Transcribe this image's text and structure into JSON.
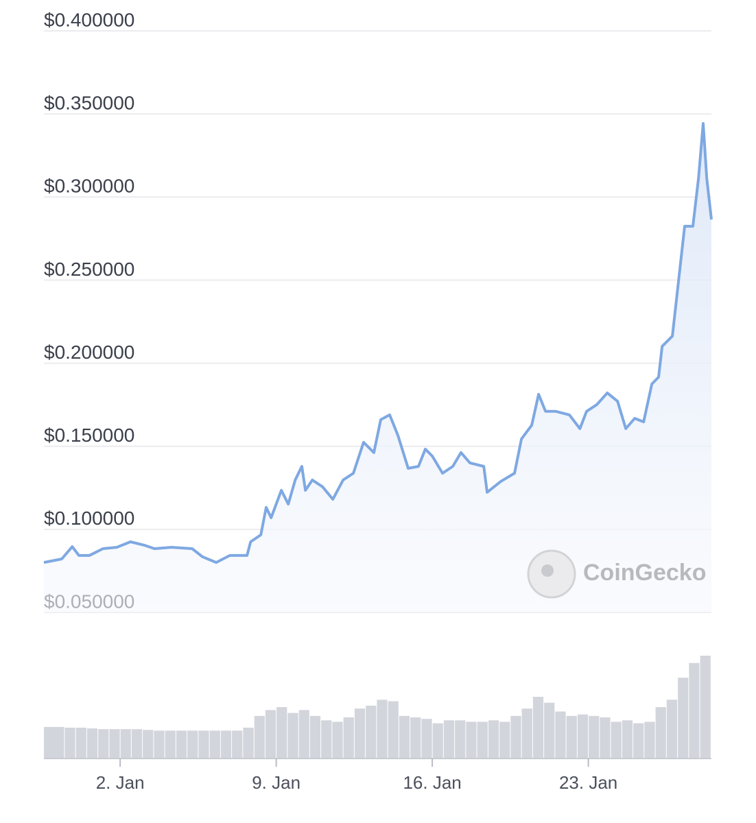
{
  "chart_data": {
    "type": "line",
    "x": [
      -1.42,
      -0.62,
      -0.15,
      0.15,
      0.62,
      1.23,
      1.85,
      2.46,
      3.08,
      3.54,
      4.31,
      5.23,
      5.69,
      6.31,
      6.92,
      7.69,
      7.85,
      8.31,
      8.55,
      8.77,
      9.23,
      9.54,
      9.85,
      10.15,
      10.31,
      10.62,
      11.08,
      11.54,
      12.0,
      12.46,
      12.92,
      13.38,
      13.69,
      14.09,
      14.46,
      14.92,
      15.38,
      15.69,
      16.0,
      16.46,
      16.92,
      17.29,
      17.69,
      18.31,
      18.46,
      19.08,
      19.69,
      20.0,
      20.46,
      20.77,
      21.08,
      21.54,
      22.15,
      22.62,
      22.92,
      23.38,
      23.85,
      24.31,
      24.68,
      25.08,
      25.48,
      25.85,
      26.15,
      26.31,
      26.77,
      27.08,
      27.32,
      27.69,
      27.94,
      28.15,
      28.31,
      28.52
    ],
    "values": [
      0.0801,
      0.0822,
      0.0896,
      0.0843,
      0.0843,
      0.0884,
      0.0892,
      0.0925,
      0.0905,
      0.0884,
      0.0892,
      0.0884,
      0.0835,
      0.0801,
      0.0843,
      0.0843,
      0.0925,
      0.0967,
      0.1132,
      0.107,
      0.1235,
      0.1152,
      0.1297,
      0.1379,
      0.1235,
      0.1297,
      0.1256,
      0.1181,
      0.1297,
      0.1338,
      0.1524,
      0.1462,
      0.166,
      0.1689,
      0.1565,
      0.1367,
      0.1379,
      0.1483,
      0.1441,
      0.1338,
      0.1379,
      0.1462,
      0.14,
      0.1379,
      0.1223,
      0.1289,
      0.1338,
      0.1544,
      0.1627,
      0.1813,
      0.171,
      0.171,
      0.1689,
      0.1606,
      0.171,
      0.1751,
      0.1821,
      0.1771,
      0.1606,
      0.1668,
      0.1647,
      0.1875,
      0.1916,
      0.2102,
      0.2163,
      0.2535,
      0.2824,
      0.2824,
      0.3113,
      0.3443,
      0.3113,
      0.2865
    ],
    "color": "#7ea8e2",
    "xlim": [
      -1.42,
      28.52
    ],
    "xticks": [
      {
        "value": 2,
        "label": "2. Jan"
      },
      {
        "value": 9,
        "label": "9. Jan"
      },
      {
        "value": 16,
        "label": "16. Jan"
      },
      {
        "value": 23,
        "label": "23. Jan"
      }
    ],
    "ylim": [
      0.05,
      0.4
    ],
    "yticks": [
      {
        "value": 0.05,
        "label": "$0.050000"
      },
      {
        "value": 0.1,
        "label": "$0.100000"
      },
      {
        "value": 0.15,
        "label": "$0.150000"
      },
      {
        "value": 0.2,
        "label": "$0.200000"
      },
      {
        "value": 0.25,
        "label": "$0.250000"
      },
      {
        "value": 0.3,
        "label": "$0.300000"
      },
      {
        "value": 0.35,
        "label": "$0.350000"
      },
      {
        "value": 0.4,
        "label": "$0.400000"
      }
    ],
    "grid": true,
    "volume": {
      "type": "bar",
      "color": "#d3d5dc",
      "x": [
        -1.25,
        -0.75,
        -0.25,
        0.25,
        0.75,
        1.25,
        1.75,
        2.25,
        2.75,
        3.25,
        3.75,
        4.25,
        4.75,
        5.25,
        5.75,
        6.25,
        6.75,
        7.25,
        7.75,
        8.25,
        8.75,
        9.25,
        9.75,
        10.25,
        10.75,
        11.25,
        11.75,
        12.25,
        12.75,
        13.25,
        13.75,
        14.25,
        14.75,
        15.25,
        15.75,
        16.25,
        16.75,
        17.25,
        17.75,
        18.25,
        18.75,
        19.25,
        19.75,
        20.25,
        20.75,
        21.25,
        21.75,
        22.25,
        22.75,
        23.25,
        23.75,
        24.25,
        24.75,
        25.25,
        25.75,
        26.25,
        26.75,
        27.25,
        27.75,
        28.25
      ],
      "values": [
        43,
        43,
        42,
        42,
        41,
        40,
        40,
        40,
        40,
        39,
        38,
        38,
        38,
        38,
        38,
        38,
        38,
        38,
        42,
        58,
        66,
        70,
        62,
        66,
        58,
        52,
        50,
        56,
        68,
        72,
        80,
        78,
        58,
        56,
        54,
        48,
        52,
        52,
        50,
        50,
        52,
        50,
        58,
        68,
        84,
        76,
        64,
        58,
        60,
        58,
        56,
        50,
        52,
        48,
        50,
        70,
        80,
        110,
        130,
        140
      ]
    },
    "watermark": "CoinGecko"
  }
}
